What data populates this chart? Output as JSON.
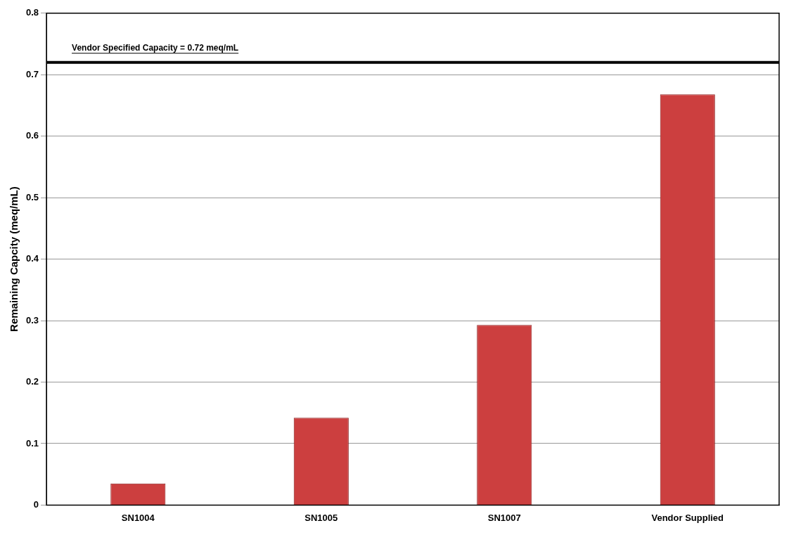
{
  "chart_data": {
    "type": "bar",
    "ylabel": "Remaining Capcity (meq/mL)",
    "categories": [
      "SN1004",
      "SN1005",
      "SN1007",
      "Vendor Supplied"
    ],
    "values": [
      0.035,
      0.142,
      0.293,
      0.668
    ],
    "color": "#cc3f3f",
    "ylim": [
      0,
      0.8
    ],
    "yticks": [
      0,
      0.1,
      0.2,
      0.3,
      0.4,
      0.5,
      0.6,
      0.7,
      0.8
    ],
    "grid": "y",
    "legend": false,
    "ref_lines": [
      {
        "axis": "y",
        "value": 0.72,
        "label": "Vendor Specified Capacity = 0.72 meq/mL",
        "color": "#000000"
      }
    ]
  }
}
